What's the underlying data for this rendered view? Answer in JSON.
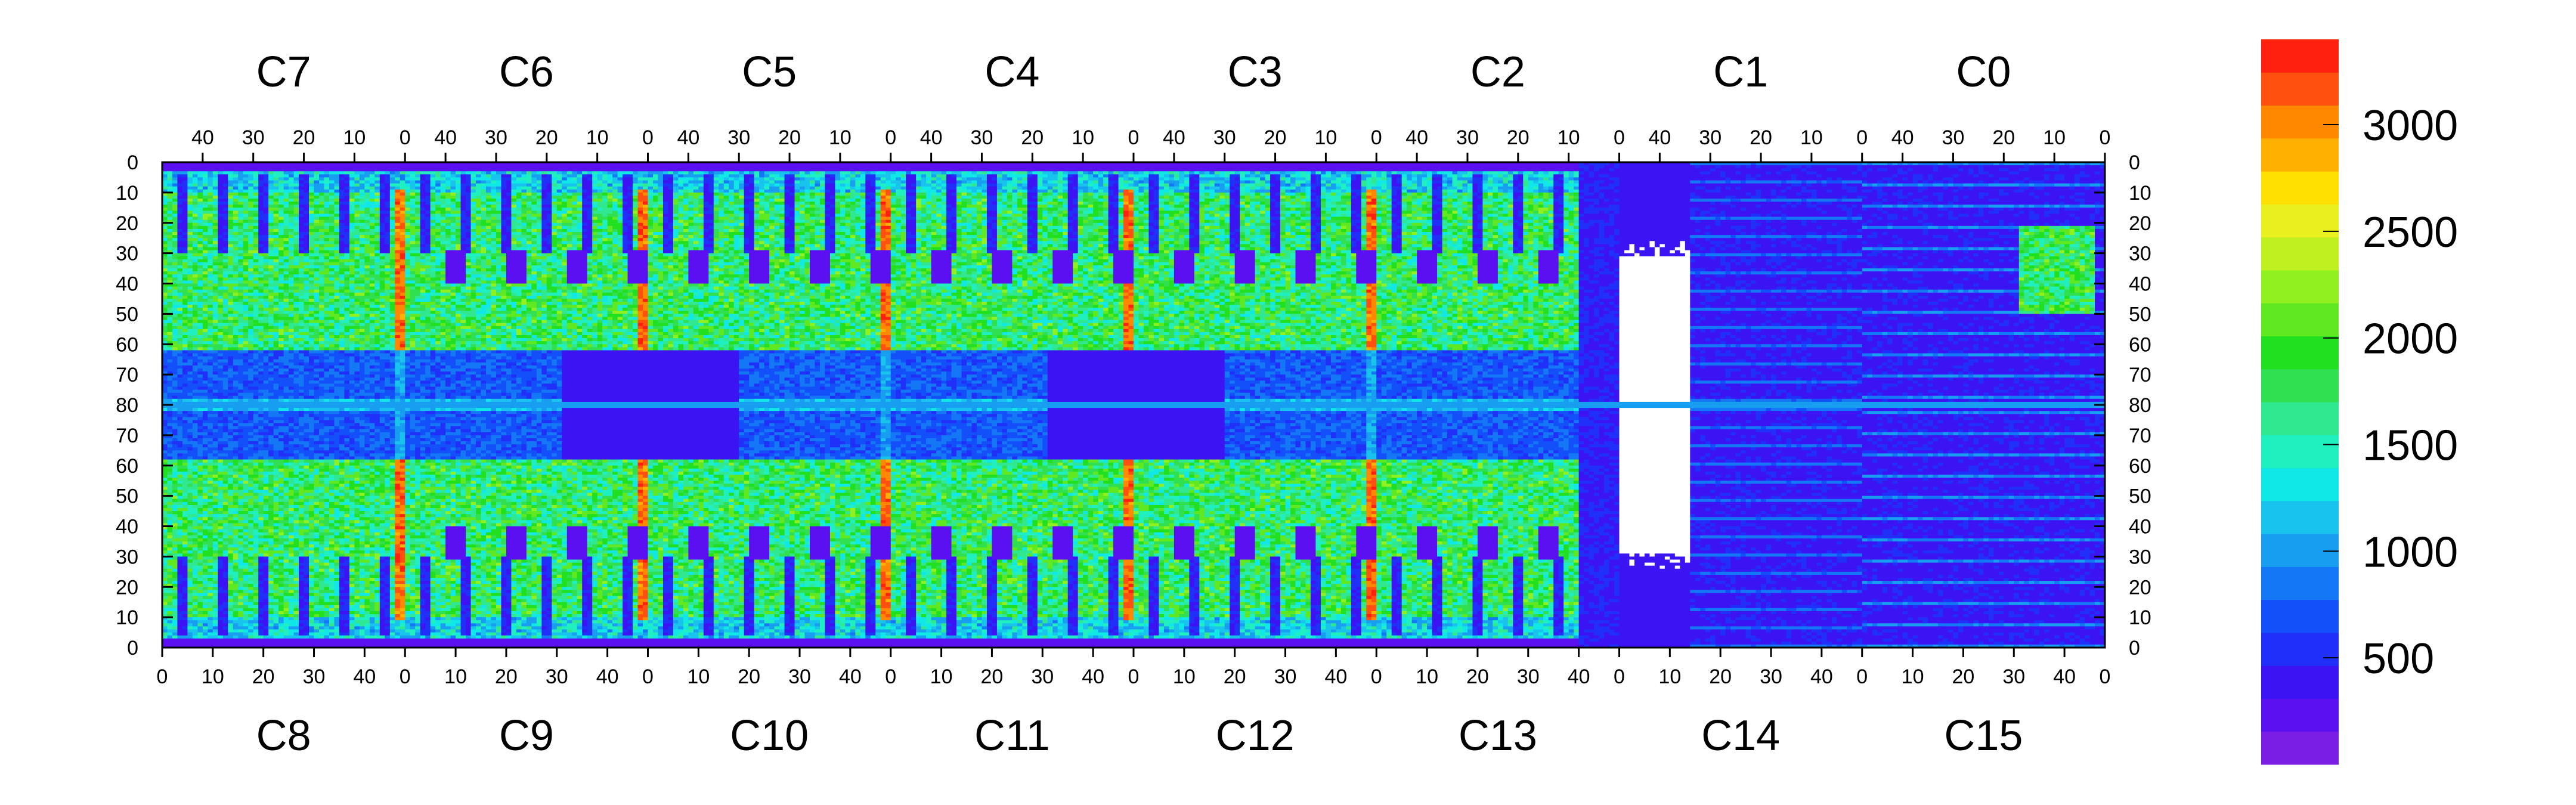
{
  "chart_data": {
    "type": "heatmap",
    "title": "",
    "top_labels": [
      "C7",
      "C6",
      "C5",
      "C4",
      "C3",
      "C2",
      "C1",
      "C0"
    ],
    "bottom_labels": [
      "C8",
      "C9",
      "C10",
      "C11",
      "C12",
      "C13",
      "C14",
      "C15"
    ],
    "top_ticks": [
      "40",
      "30",
      "20",
      "10",
      "0"
    ],
    "bottom_ticks": [
      "0",
      "10",
      "20",
      "30",
      "40"
    ],
    "left_ticks": [
      "0",
      "10",
      "20",
      "30",
      "40",
      "50",
      "60",
      "70",
      "80",
      "70",
      "60",
      "50",
      "40",
      "30",
      "20",
      "10",
      "0"
    ],
    "right_ticks": [
      "0",
      "10",
      "20",
      "30",
      "40",
      "50",
      "60",
      "70",
      "80",
      "70",
      "60",
      "50",
      "40",
      "30",
      "20",
      "10",
      "0"
    ],
    "chip_columns": 48,
    "rows_top_half": 80,
    "rows_bottom_half": 80,
    "zlim": [
      0,
      3400
    ],
    "colorbar_ticks": [
      "3000",
      "2500",
      "2000",
      "1500",
      "1000",
      "500"
    ],
    "colorbar_tick_values": [
      3000,
      2500,
      2000,
      1500,
      1000,
      500
    ],
    "palette": [
      "#7a1ee6",
      "#5a10f0",
      "#3c14f4",
      "#2030f8",
      "#1450fa",
      "#1478f6",
      "#189ef0",
      "#18c4ee",
      "#10e8e8",
      "#20f0c0",
      "#30e890",
      "#30e050",
      "#20e020",
      "#60e820",
      "#90f020",
      "#c0f020",
      "#eaf020",
      "#ffe000",
      "#ffb000",
      "#ff8800",
      "#ff5010",
      "#ff2010"
    ],
    "regions": [
      {
        "name": "high-occupancy-band-top",
        "rows": [
          10,
          60
        ],
        "level": 1600
      },
      {
        "name": "low-occupancy-band-center",
        "rows": [
          65,
          95
        ],
        "level": 500
      },
      {
        "name": "high-occupancy-band-bottom",
        "rows": [
          100,
          150
        ],
        "level": 1500
      },
      {
        "name": "hot-column-seams",
        "columns": [
          0,
          48,
          96,
          144,
          192
        ],
        "level": 3200
      },
      {
        "name": "dead-region-C13-C14",
        "columns": [
          272,
          310
        ],
        "level": 0
      },
      {
        "name": "low-region-C0-C1-C14-C15",
        "columns": [
          300,
          384
        ],
        "level": 400
      }
    ]
  }
}
